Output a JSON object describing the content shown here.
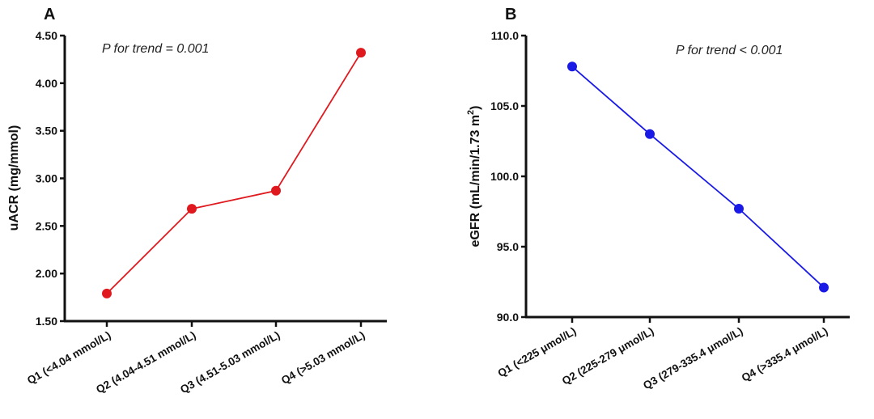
{
  "chart_data": [
    {
      "type": "line",
      "panel_label": "A",
      "annotation": "P for trend = 0.001",
      "ylabel": "uACR (mg/mmol)",
      "xlabel": "",
      "categories": [
        "Q1 (<4.04 mmol/L)",
        "Q2 (4.04-4.51 mmol/L)",
        "Q3 (4.51-5.03 mmol/L)",
        "Q4 (>5.03 mmol/L)"
      ],
      "values": [
        1.79,
        2.68,
        2.87,
        4.32
      ],
      "ylim": [
        1.5,
        4.5
      ],
      "yticks": [
        "1.50",
        "2.00",
        "2.50",
        "3.00",
        "3.50",
        "4.00",
        "4.50"
      ],
      "color": "#e0191e",
      "grid": false
    },
    {
      "type": "line",
      "panel_label": "B",
      "annotation": "P for trend < 0.001",
      "ylabel": "eGFR (mL/min/1.73 m",
      "ylabel_superscript": "2",
      "ylabel_close": ")",
      "xlabel": "",
      "categories": [
        "Q1 (<225 μmol/L)",
        "Q2 (225-279 μmol/L)",
        "Q3 (279-335.4 μmol/L)",
        "Q4 (>335.4 μmol/L)"
      ],
      "values": [
        107.8,
        103.0,
        97.7,
        92.1
      ],
      "ylim": [
        90,
        110
      ],
      "yticks": [
        "90.0",
        "95.0",
        "100.0",
        "105.0",
        "110.0"
      ],
      "color": "#1a1ae6",
      "grid": false
    }
  ]
}
